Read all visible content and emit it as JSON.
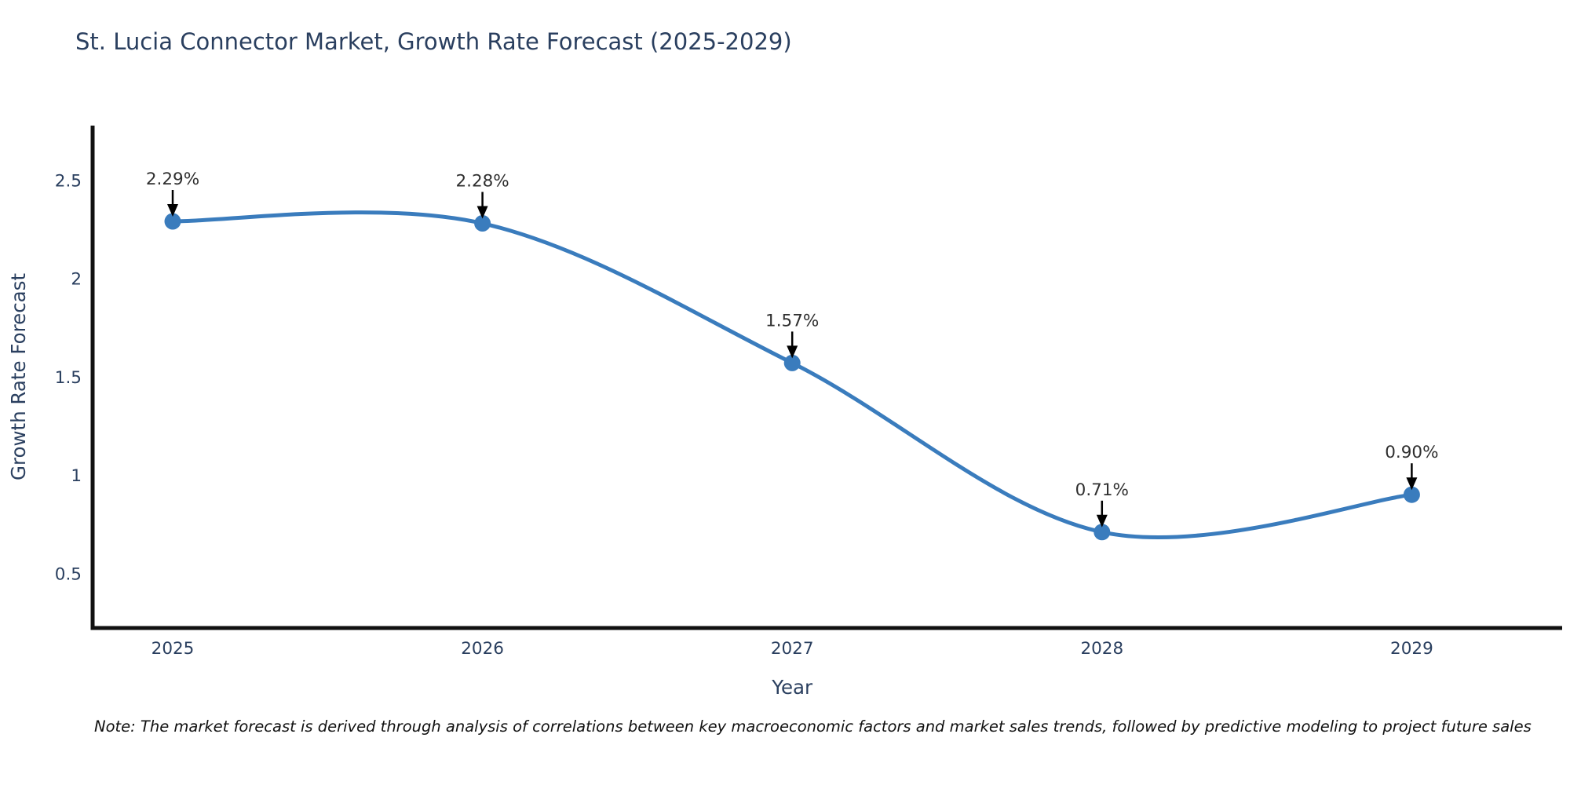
{
  "title": "St. Lucia Connector Market, Growth Rate Forecast (2025-2029)",
  "note": "Note: The market forecast is derived through analysis of correlations between key macroeconomic factors and market sales trends, followed by predictive modeling to project future sales",
  "chart_data": {
    "type": "line",
    "title": "St. Lucia Connector Market, Growth Rate Forecast (2025-2029)",
    "xlabel": "Year",
    "ylabel": "Growth Rate Forecast",
    "x": [
      2025,
      2026,
      2027,
      2028,
      2029
    ],
    "series": [
      {
        "name": "Growth Rate Forecast",
        "values": [
          2.29,
          2.28,
          1.57,
          0.71,
          0.9
        ],
        "point_labels": [
          "2.29%",
          "2.28%",
          "1.57%",
          "0.71%",
          "0.90%"
        ]
      }
    ],
    "x_tick_labels": [
      "2025",
      "2026",
      "2027",
      "2028",
      "2029"
    ],
    "y_ticks": [
      0.5,
      1,
      1.5,
      2,
      2.5
    ],
    "y_tick_labels": [
      "0.5",
      "1",
      "1.5",
      "2",
      "2.5"
    ],
    "ylim": [
      0.22,
      2.78
    ],
    "line_shape": "spline",
    "grid": "off",
    "legend": "none",
    "annotations": "arrows-from-labels-to-points",
    "colors": {
      "line": "#3a7cbd",
      "marker": "#3a7cbd",
      "axis": "#111111",
      "tick_text": "#2a3f5f",
      "axis_title_text": "#2a3f5f",
      "title_text": "#2a3f5f",
      "annotation_text": "#2f2f2f",
      "annotation_arrow": "#000000",
      "background": "#ffffff"
    }
  }
}
